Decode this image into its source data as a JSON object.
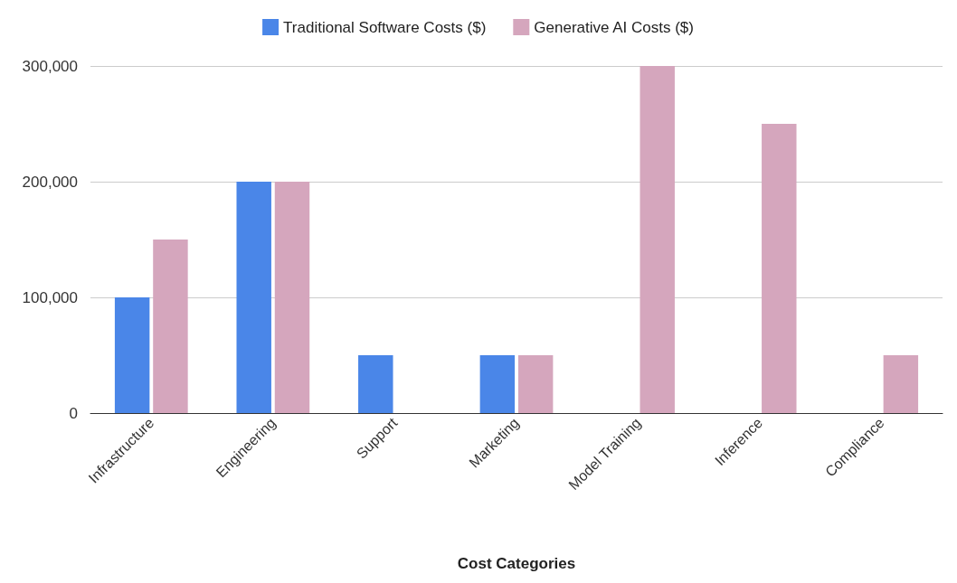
{
  "chart_data": {
    "type": "bar",
    "xlabel": "Cost Categories",
    "categories": [
      "Infrastructure",
      "Engineering",
      "Support",
      "Marketing",
      "Model Training",
      "Inference",
      "Compliance"
    ],
    "series": [
      {
        "name": "Traditional Software Costs ($)",
        "color": "#4a86e8",
        "values": [
          100000,
          200000,
          50000,
          50000,
          0,
          0,
          0
        ]
      },
      {
        "name": "Generative AI Costs ($)",
        "color": "#d5a6bd",
        "values": [
          150000,
          200000,
          0,
          50000,
          300000,
          250000,
          50000
        ]
      }
    ],
    "ylim": [
      0,
      300000
    ],
    "yticks": [
      0,
      {
        "value": 100000,
        "label": "100,000"
      },
      {
        "value": 200000,
        "label": "200,000"
      },
      {
        "value": 300000,
        "label": "300,000"
      }
    ],
    "grid": "y",
    "legend": "top"
  }
}
